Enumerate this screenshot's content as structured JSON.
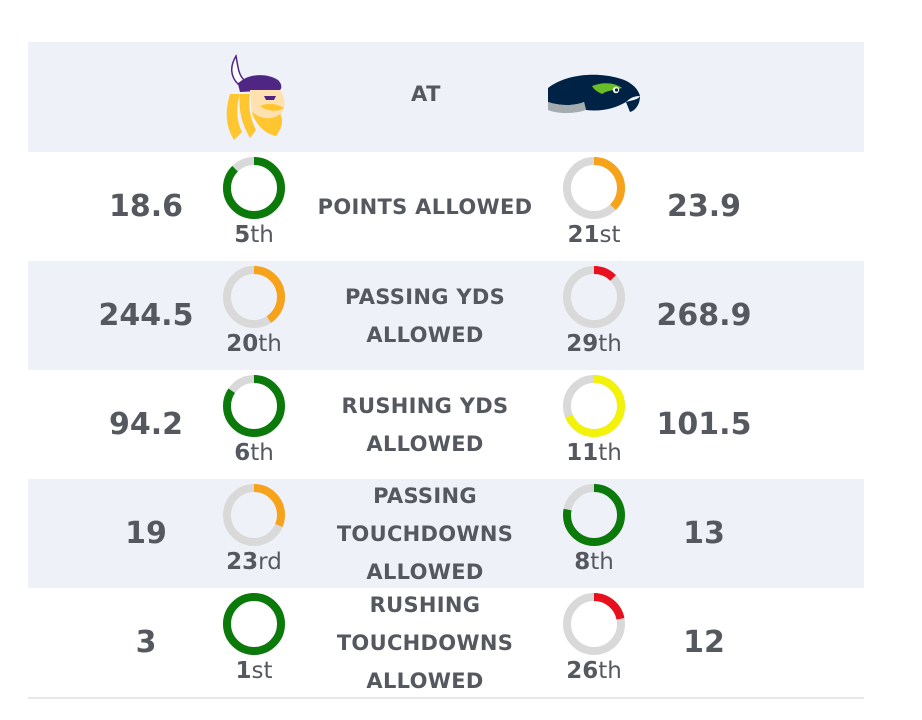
{
  "header": {
    "at_label": "AT",
    "home_team_icon": "vikings-logo-icon",
    "away_team_icon": "seahawks-logo-icon",
    "home_color": "#4f2683",
    "away_color": "#002244"
  },
  "colors": {
    "green": "#0b7a0b",
    "orange": "#f7a21b",
    "yellow": "#f2f20a",
    "red": "#e8101e",
    "track": "#d9d9d9"
  },
  "rows": [
    {
      "stat": "POINTS ALLOWED",
      "left_value": "18.6",
      "left_rank_num": "5",
      "left_rank_suffix": "th",
      "left_rank": 5,
      "left_color": "#0b7a0b",
      "right_value": "23.9",
      "right_rank_num": "21",
      "right_rank_suffix": "st",
      "right_rank": 21,
      "right_color": "#f7a21b"
    },
    {
      "stat": "PASSING YDS ALLOWED",
      "left_value": "244.5",
      "left_rank_num": "20",
      "left_rank_suffix": "th",
      "left_rank": 20,
      "left_color": "#f7a21b",
      "right_value": "268.9",
      "right_rank_num": "29",
      "right_rank_suffix": "th",
      "right_rank": 29,
      "right_color": "#e8101e"
    },
    {
      "stat": "RUSHING YDS ALLOWED",
      "left_value": "94.2",
      "left_rank_num": "6",
      "left_rank_suffix": "th",
      "left_rank": 6,
      "left_color": "#0b7a0b",
      "right_value": "101.5",
      "right_rank_num": "11",
      "right_rank_suffix": "th",
      "right_rank": 11,
      "right_color": "#f2f20a"
    },
    {
      "stat": "PASSING TOUCHDOWNS ALLOWED",
      "left_value": "19",
      "left_rank_num": "23",
      "left_rank_suffix": "rd",
      "left_rank": 23,
      "left_color": "#f7a21b",
      "right_value": "13",
      "right_rank_num": "8",
      "right_rank_suffix": "th",
      "right_rank": 8,
      "right_color": "#0b7a0b"
    },
    {
      "stat": "RUSHING TOUCHDOWNS ALLOWED",
      "left_value": "3",
      "left_rank_num": "1",
      "left_rank_suffix": "st",
      "left_rank": 1,
      "left_color": "#0b7a0b",
      "right_value": "12",
      "right_rank_num": "26",
      "right_rank_suffix": "th",
      "right_rank": 26,
      "right_color": "#e8101e"
    }
  ],
  "league_size": 32
}
